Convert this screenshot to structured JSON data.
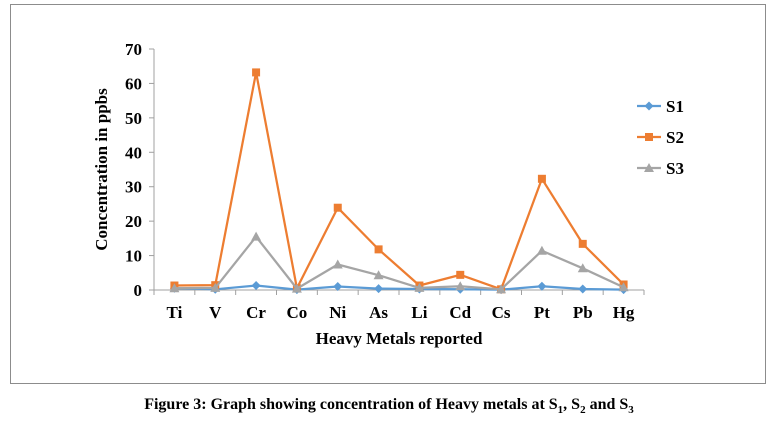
{
  "caption": {
    "prefix": "Figure 3: Graph showing concentration of Heavy metals at S",
    "s1_sub": "1",
    "sep1": ", S",
    "s2_sub": "2",
    "sep2": " and S",
    "s3_sub": "3"
  },
  "chart_data": {
    "type": "line",
    "title": "",
    "xlabel": "Heavy Metals reported",
    "ylabel": "Concentration in ppbs",
    "categories": [
      "Ti",
      "V",
      "Cr",
      "Co",
      "Ni",
      "As",
      "Li",
      "Cd",
      "Cs",
      "Pt",
      "Pb",
      "Hg"
    ],
    "ylim": [
      0,
      70
    ],
    "yticks": [
      0,
      10,
      20,
      30,
      40,
      50,
      60,
      70
    ],
    "grid": false,
    "legend_position": "right",
    "series": [
      {
        "name": "S1",
        "color": "#5b9bd5",
        "marker": "diamond",
        "values": [
          0.5,
          0.2,
          1.3,
          0.1,
          1.0,
          0.4,
          0.3,
          0.2,
          0.1,
          1.1,
          0.3,
          0.1
        ]
      },
      {
        "name": "S2",
        "color": "#ed7d31",
        "marker": "square",
        "values": [
          1.3,
          1.4,
          63.2,
          0.5,
          23.9,
          11.8,
          1.3,
          4.4,
          0.2,
          32.3,
          13.4,
          1.6
        ]
      },
      {
        "name": "S3",
        "color": "#a5a5a5",
        "marker": "triangle",
        "values": [
          0.5,
          0.6,
          15.5,
          0.4,
          7.4,
          4.3,
          0.6,
          1.1,
          0.2,
          11.4,
          6.3,
          0.8
        ]
      }
    ]
  }
}
